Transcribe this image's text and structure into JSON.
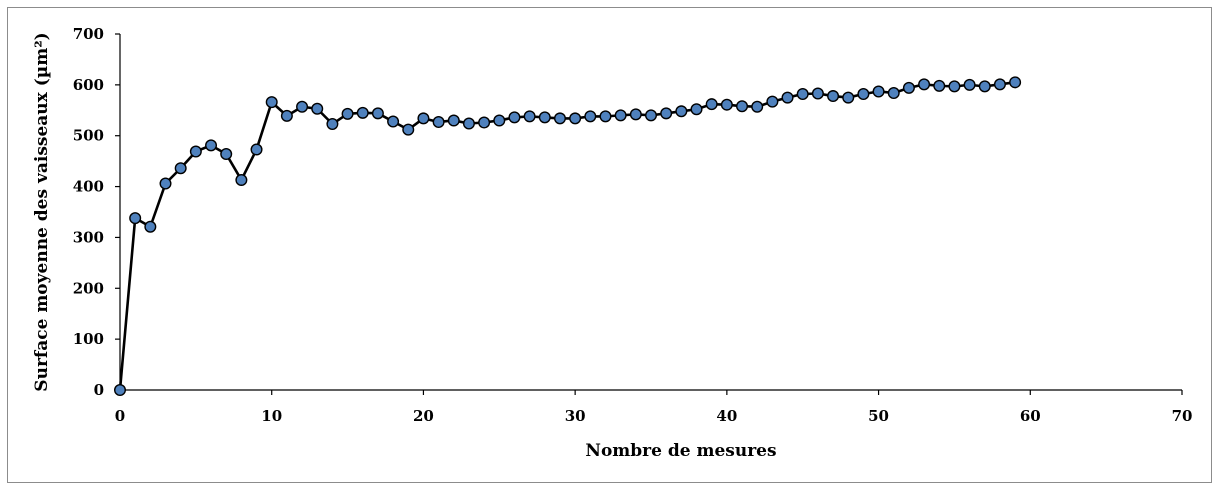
{
  "chart_data": {
    "type": "line",
    "title": "",
    "xlabel": "Nombre de mesures",
    "ylabel": "Surface moyenne des vaisseaux (µm²)",
    "xlim": [
      0,
      70
    ],
    "ylim": [
      0,
      700
    ],
    "xticks": [
      0,
      10,
      20,
      30,
      40,
      50,
      60,
      70
    ],
    "yticks": [
      0,
      100,
      200,
      300,
      400,
      500,
      600,
      700
    ],
    "grid": false,
    "legend": "none",
    "line_color": "#000000",
    "marker_fill": "#4f81bd",
    "marker_edge": "#000000",
    "series": [
      {
        "x": [
          0,
          1,
          2,
          3,
          4,
          5,
          6,
          7,
          8,
          9,
          10,
          11,
          12,
          13,
          14,
          15,
          16,
          17,
          18,
          19,
          20,
          21,
          22,
          23,
          24,
          25,
          26,
          27,
          28,
          29,
          30,
          31,
          32,
          33,
          34,
          35,
          36,
          37,
          38,
          39,
          40,
          41,
          42,
          43,
          44,
          45,
          46,
          47,
          48,
          49,
          50,
          51,
          52,
          53,
          54,
          55,
          56,
          57,
          58,
          59
        ],
        "values": [
          0,
          338,
          321,
          406,
          436,
          469,
          481,
          464,
          413,
          473,
          566,
          539,
          557,
          553,
          523,
          543,
          545,
          544,
          528,
          512,
          534,
          527,
          530,
          524,
          526,
          530,
          536,
          538,
          536,
          534,
          534,
          538,
          538,
          540,
          542,
          540,
          544,
          548,
          552,
          562,
          561,
          558,
          557,
          567,
          575,
          582,
          583,
          578,
          575,
          582,
          587,
          584,
          594,
          601,
          598,
          597,
          600,
          597,
          601,
          605
        ]
      }
    ]
  }
}
